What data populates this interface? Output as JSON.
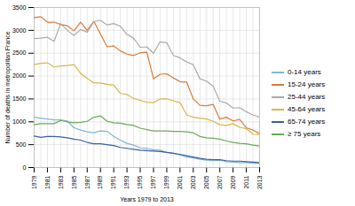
{
  "chart_data": {
    "type": "line",
    "x": [
      1979,
      1980,
      1981,
      1982,
      1983,
      1984,
      1985,
      1986,
      1987,
      1988,
      1989,
      1990,
      1991,
      1992,
      1993,
      1994,
      1995,
      1996,
      1997,
      1998,
      1999,
      2000,
      2001,
      2002,
      2003,
      2004,
      2005,
      2006,
      2007,
      2008,
      2009,
      2010,
      2011,
      2012,
      2013
    ],
    "series": [
      {
        "name": "0-14 years",
        "color": "#7eb6d4",
        "values": [
          1100,
          1080,
          1060,
          1040,
          1040,
          1020,
          870,
          820,
          780,
          760,
          800,
          790,
          680,
          600,
          530,
          490,
          430,
          420,
          390,
          380,
          330,
          310,
          270,
          230,
          210,
          180,
          160,
          150,
          160,
          130,
          120,
          110,
          110,
          100,
          90
        ]
      },
      {
        "name": "15-24 years",
        "color": "#d97b3a",
        "values": [
          3280,
          3300,
          3180,
          3180,
          3130,
          3100,
          2990,
          3180,
          3000,
          3200,
          2920,
          2640,
          2660,
          2550,
          2480,
          2450,
          2510,
          2520,
          1940,
          2040,
          2050,
          1960,
          1880,
          1870,
          1500,
          1360,
          1350,
          1380,
          1060,
          1100,
          1020,
          1050,
          870,
          820,
          740
        ]
      },
      {
        "name": "25-44 years",
        "color": "#aaaaaa",
        "values": [
          2820,
          2830,
          2850,
          2760,
          3150,
          3000,
          2890,
          3020,
          2960,
          3190,
          3220,
          3120,
          3150,
          3090,
          2910,
          2830,
          2630,
          2640,
          2500,
          2750,
          2730,
          2450,
          2400,
          2310,
          2250,
          1940,
          1890,
          1780,
          1450,
          1410,
          1300,
          1310,
          1220,
          1150,
          1100
        ]
      },
      {
        "name": "45-64 years",
        "color": "#d4b84a",
        "values": [
          2250,
          2280,
          2290,
          2200,
          2220,
          2230,
          2250,
          2060,
          1950,
          1850,
          1850,
          1820,
          1800,
          1620,
          1600,
          1510,
          1470,
          1430,
          1420,
          1500,
          1500,
          1460,
          1420,
          1150,
          1100,
          1080,
          1060,
          1010,
          940,
          920,
          960,
          880,
          850,
          730,
          720
        ]
      },
      {
        "name": "65-74 years",
        "color": "#3a5fa0",
        "values": [
          690,
          660,
          680,
          680,
          670,
          650,
          620,
          600,
          550,
          520,
          520,
          500,
          480,
          440,
          420,
          400,
          380,
          370,
          360,
          350,
          330,
          310,
          290,
          260,
          230,
          200,
          180,
          170,
          170,
          150,
          140,
          140,
          130,
          120,
          110
        ]
      },
      {
        "name": "≥ 75 years",
        "color": "#6aaa5a",
        "values": [
          940,
          960,
          960,
          960,
          1030,
          1000,
          980,
          990,
          1010,
          1100,
          1130,
          1010,
          980,
          970,
          940,
          920,
          860,
          830,
          800,
          800,
          800,
          790,
          790,
          780,
          760,
          680,
          650,
          640,
          620,
          580,
          550,
          530,
          520,
          490,
          470
        ]
      }
    ],
    "xlabel": "Years 1979 to 2013",
    "ylabel": "Number of deaths in metropolitan France",
    "xlim": [
      1979,
      2013
    ],
    "xticks": [
      1979,
      1981,
      1983,
      1985,
      1987,
      1989,
      1991,
      1993,
      1995,
      1997,
      1999,
      2001,
      2003,
      2005,
      2007,
      2009,
      2011,
      2013
    ],
    "ylim": [
      0,
      3500
    ],
    "yticks": [
      0,
      500,
      1000,
      1500,
      2000,
      2500,
      3000,
      3500
    ],
    "grid": true,
    "legend": "right"
  }
}
